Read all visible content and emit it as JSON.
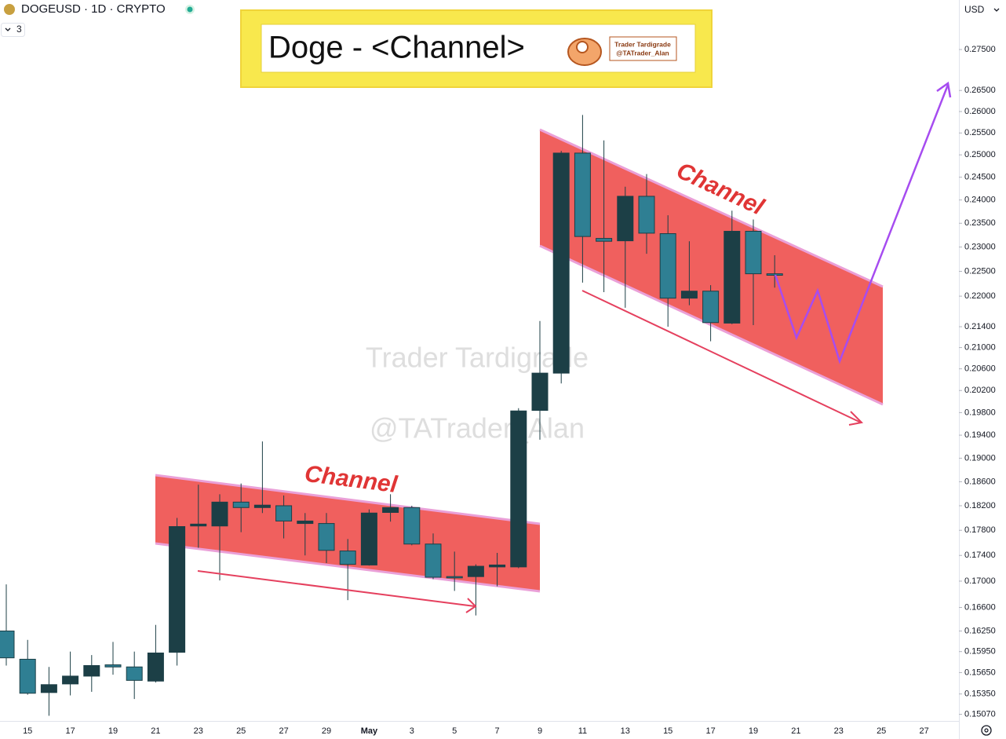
{
  "header": {
    "symbol": "DOGEUSD · 1D · CRYPTO",
    "indicator_count": "3",
    "currency": "USD"
  },
  "banner": {
    "title": "Doge - <Channel>",
    "author": "Trader Tardigrade",
    "handle": "@TATrader_Alan"
  },
  "watermark": {
    "line1": "Trader Tardigrade",
    "line2": "@TATrader_Alan"
  },
  "annotations": {
    "lower_channel": "Channel",
    "upper_channel": "Channel"
  },
  "chart_data": {
    "type": "candlestick",
    "log_scale": true,
    "up_color": "#1c3f46",
    "down_color": "#2f7f93",
    "categories": [
      null,
      "15",
      null,
      "17",
      null,
      "19",
      null,
      "21",
      null,
      "23",
      null,
      "25",
      null,
      "27",
      null,
      "29",
      null,
      "May",
      null,
      "3",
      null,
      "5",
      null,
      "7",
      null,
      "9",
      null,
      "11",
      null,
      "13",
      null,
      "15",
      null,
      "17",
      null,
      "19",
      null,
      "21",
      null,
      "23",
      null,
      "25",
      null,
      "27",
      null
    ],
    "open": [
      0.1625,
      0.1584,
      0.1537,
      0.1549,
      0.156,
      0.1576,
      0.1573,
      0.1553,
      0.1594,
      0.1787,
      0.1787,
      0.1826,
      0.1817,
      0.182,
      0.1791,
      0.1791,
      0.1747,
      0.1725,
      0.1809,
      0.1817,
      0.1758,
      0.1707,
      0.1707,
      0.1722,
      0.1722,
      0.1984,
      0.2052,
      0.2504,
      0.2318,
      0.2313,
      0.2408,
      0.2328,
      0.2196,
      0.221,
      0.2147,
      0.2333,
      0.2245,
      null,
      null,
      null,
      null,
      null,
      null,
      null,
      null
    ],
    "high": [
      0.1695,
      0.1612,
      0.1573,
      0.1595,
      0.159,
      0.1609,
      0.1595,
      0.1634,
      0.18,
      0.1855,
      0.1839,
      0.1857,
      0.1929,
      0.1837,
      0.1808,
      0.1808,
      0.1766,
      0.1814,
      0.1839,
      0.182,
      0.1775,
      0.1746,
      0.1726,
      0.1744,
      0.1988,
      0.2151,
      0.2509,
      0.2592,
      0.2533,
      0.2429,
      0.2457,
      0.2367,
      0.2312,
      0.2222,
      0.2377,
      0.2358,
      0.2283,
      null,
      null,
      null,
      null,
      null,
      null,
      null,
      null
    ],
    "low": [
      0.1575,
      0.1534,
      0.1505,
      0.1533,
      0.1538,
      0.1562,
      0.1528,
      0.1551,
      0.1575,
      0.1752,
      0.1701,
      0.1777,
      0.1808,
      0.1767,
      0.174,
      0.1728,
      0.1671,
      0.1724,
      0.1794,
      0.1756,
      0.1703,
      0.1685,
      0.1648,
      0.1692,
      0.172,
      0.1932,
      0.2033,
      0.2227,
      0.2208,
      0.2177,
      0.2286,
      0.214,
      0.2182,
      0.2112,
      0.2145,
      0.2143,
      0.2217,
      null,
      null,
      null,
      null,
      null,
      null,
      null,
      null
    ],
    "close": [
      0.1586,
      0.1536,
      0.1548,
      0.156,
      0.1575,
      0.1573,
      0.1554,
      0.1593,
      0.1786,
      0.179,
      0.1826,
      0.1817,
      0.1821,
      0.1795,
      0.1795,
      0.1748,
      0.1726,
      0.1808,
      0.1817,
      0.1758,
      0.1706,
      0.1705,
      0.1723,
      0.1725,
      0.1983,
      0.2052,
      0.2504,
      0.2322,
      0.2312,
      0.2408,
      0.2329,
      0.2196,
      0.221,
      0.2148,
      0.2333,
      0.2245,
      0.2242,
      null,
      null,
      null,
      null,
      null,
      null,
      null,
      null
    ],
    "ylim": [
      0.1498,
      0.2876
    ],
    "yticks": [
      {
        "value": 0.275,
        "label": "0.27500"
      },
      {
        "value": 0.265,
        "label": "0.26500"
      },
      {
        "value": 0.26,
        "label": "0.26000"
      },
      {
        "value": 0.255,
        "label": "0.25500"
      },
      {
        "value": 0.25,
        "label": "0.25000"
      },
      {
        "value": 0.245,
        "label": "0.24500"
      },
      {
        "value": 0.24,
        "label": "0.24000"
      },
      {
        "value": 0.235,
        "label": "0.23500"
      },
      {
        "value": 0.23,
        "label": "0.23000"
      },
      {
        "value": 0.225,
        "label": "0.22500"
      },
      {
        "value": 0.22,
        "label": "0.22000"
      },
      {
        "value": 0.214,
        "label": "0.21400"
      },
      {
        "value": 0.21,
        "label": "0.21000"
      },
      {
        "value": 0.206,
        "label": "0.20600"
      },
      {
        "value": 0.202,
        "label": "0.20200"
      },
      {
        "value": 0.198,
        "label": "0.19800"
      },
      {
        "value": 0.194,
        "label": "0.19400"
      },
      {
        "value": 0.19,
        "label": "0.19000"
      },
      {
        "value": 0.186,
        "label": "0.18600"
      },
      {
        "value": 0.182,
        "label": "0.18200"
      },
      {
        "value": 0.178,
        "label": "0.17800"
      },
      {
        "value": 0.174,
        "label": "0.17400"
      },
      {
        "value": 0.17,
        "label": "0.17000"
      },
      {
        "value": 0.166,
        "label": "0.16600"
      },
      {
        "value": 0.1625,
        "label": "0.16250"
      },
      {
        "value": 0.1595,
        "label": "0.15950"
      },
      {
        "value": 0.1565,
        "label": "0.15650"
      },
      {
        "value": 0.1535,
        "label": "0.15350"
      },
      {
        "value": 0.1507,
        "label": "0.15070"
      }
    ]
  }
}
